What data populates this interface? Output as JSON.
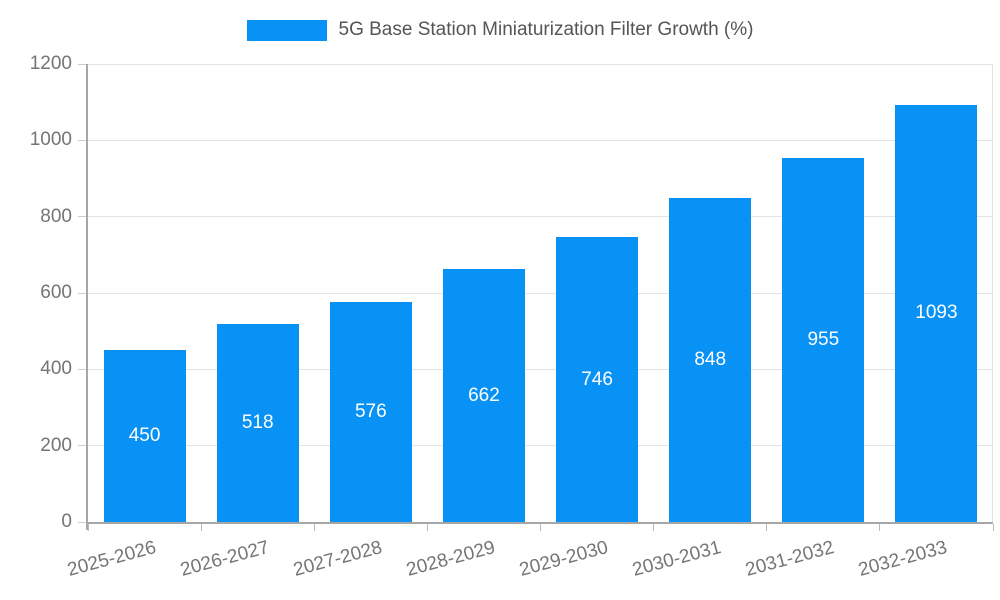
{
  "chart_data": {
    "type": "bar",
    "legend": "5G Base Station Miniaturization Filter Growth (%)",
    "legend_position": "top-center",
    "categories": [
      "2025-2026",
      "2026-2027",
      "2027-2028",
      "2028-2029",
      "2029-2030",
      "2030-2031",
      "2031-2032",
      "2032-2033"
    ],
    "values": [
      450,
      518,
      576,
      662,
      746,
      848,
      955,
      1093
    ],
    "xlabel": "",
    "ylabel": "",
    "ylim": [
      0,
      1200
    ],
    "yticks": [
      0,
      200,
      400,
      600,
      800,
      1000,
      1200
    ],
    "grid": "horizontal",
    "value_label_placement": "inside-center",
    "x_label_rotation_deg": -15,
    "colors": {
      "bar": "#0892f5",
      "value_label": "#ffffff",
      "tick_label": "#757575",
      "legend_text": "#555555",
      "gridline": "#e4e4e4",
      "axis_line": "#a6a6a6",
      "background": "#ffffff"
    }
  }
}
